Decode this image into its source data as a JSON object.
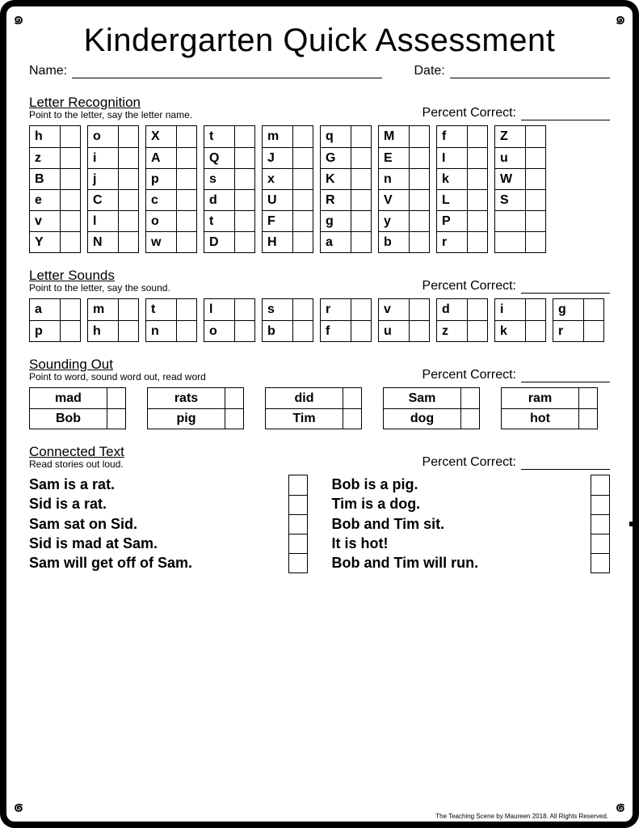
{
  "title": "Kindergarten Quick Assessment",
  "labels": {
    "name": "Name:",
    "date": "Date:",
    "percent_correct": "Percent Correct:"
  },
  "sections": {
    "letter_recognition": {
      "title": "Letter Recognition",
      "sub": "Point to the letter, say the letter name.",
      "columns": [
        [
          "h",
          "z",
          "B",
          "e",
          "v",
          "Y"
        ],
        [
          "o",
          "i",
          "j",
          "C",
          "l",
          "N"
        ],
        [
          "X",
          "A",
          "p",
          "c",
          "o",
          "w"
        ],
        [
          "t",
          "Q",
          "s",
          "d",
          "t",
          "D"
        ],
        [
          "m",
          "J",
          "x",
          "U",
          "F",
          "H"
        ],
        [
          "q",
          "G",
          "K",
          "R",
          "g",
          "a"
        ],
        [
          "M",
          "E",
          "n",
          "V",
          "y",
          "b"
        ],
        [
          "f",
          "I",
          "k",
          "L",
          "P",
          "r"
        ],
        [
          "Z",
          "u",
          "W",
          "S",
          "",
          ""
        ]
      ]
    },
    "letter_sounds": {
      "title": "Letter Sounds",
      "sub": "Point to the letter, say the sound.",
      "columns": [
        [
          "a",
          "p"
        ],
        [
          "m",
          "h"
        ],
        [
          "t",
          "n"
        ],
        [
          "l",
          "o"
        ],
        [
          "s",
          "b"
        ],
        [
          "r",
          "f"
        ],
        [
          "v",
          "u"
        ],
        [
          "d",
          "z"
        ],
        [
          "i",
          "k"
        ],
        [
          "g",
          "r"
        ]
      ]
    },
    "sounding_out": {
      "title": "Sounding Out",
      "sub": "Point to word, sound word out, read word",
      "columns": [
        [
          "mad",
          "Bob"
        ],
        [
          "rats",
          "pig"
        ],
        [
          "did",
          "Tim"
        ],
        [
          "Sam",
          "dog"
        ],
        [
          "ram",
          "hot"
        ]
      ]
    },
    "connected_text": {
      "title": "Connected Text",
      "sub": "Read stories out loud.",
      "story1": [
        "Sam is a rat.",
        "Sid is a rat.",
        "Sam sat on Sid.",
        "Sid is mad at Sam.",
        "Sam will get off of Sam."
      ],
      "story2": [
        "Bob is a pig.",
        "Tim is a dog.",
        "Bob and Tim sit.",
        "It is hot!",
        "Bob and Tim will run."
      ]
    }
  },
  "footer": "The Teaching Scene by Maureen 2018. All Rights Reserved."
}
